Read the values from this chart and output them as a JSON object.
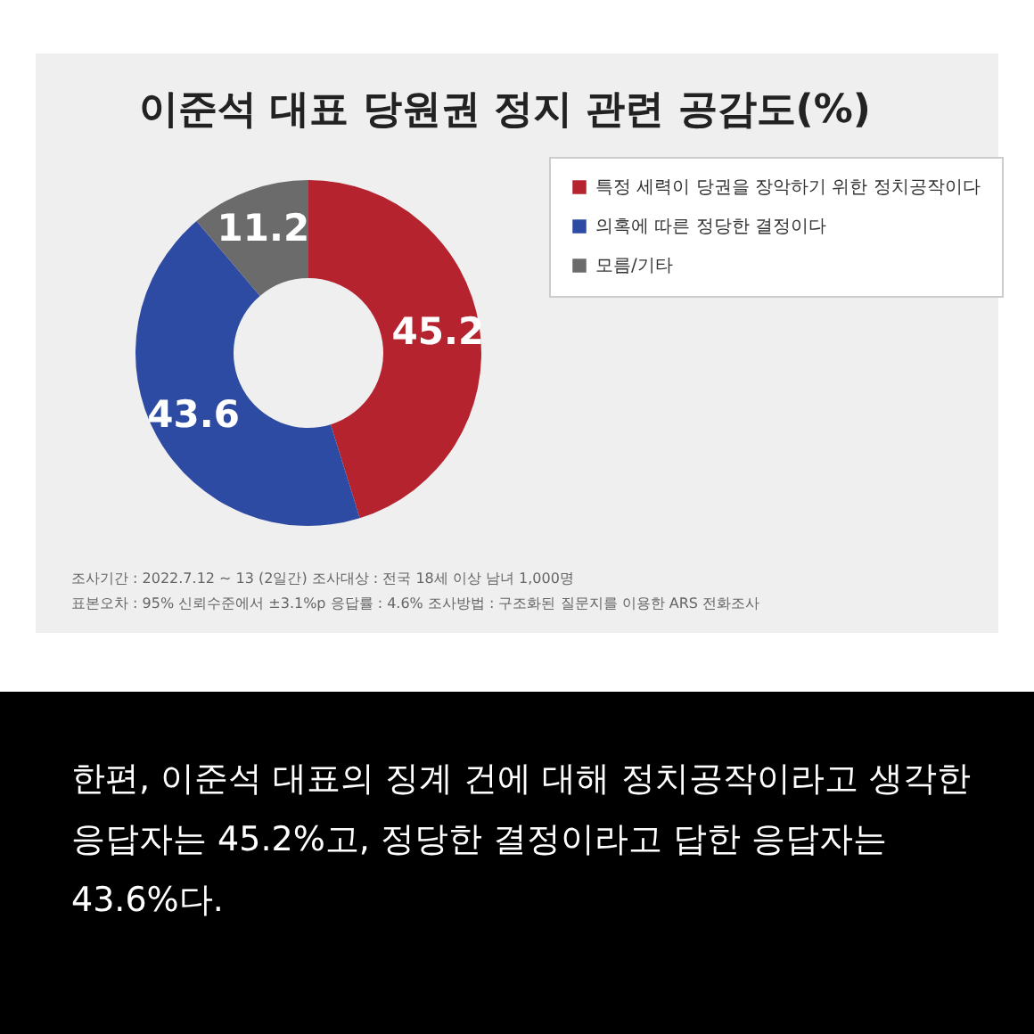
{
  "chart_data": {
    "type": "donut",
    "title": "이준석 대표 당원권 정지 관련 공감도(%)",
    "categories": [
      "특정 세력이 당권을 장악하기 위한 정치공작이다",
      "의혹에 따른 정당한 결정이다",
      "모름/기타"
    ],
    "values": [
      45.2,
      43.6,
      11.2
    ],
    "colors": [
      "#b5232e",
      "#2d4ba3",
      "#6b6b6b"
    ],
    "data_labels": true,
    "legend": "right",
    "annotations": [
      "조사기간 : 2022.7.12 ~ 13 (2일간)  조사대상 : 전국 18세 이상 남녀 1,000명",
      "표본오차 : 95% 신뢰수준에서 ±3.1%p  응답률 : 4.6%  조사방법 : 구조화된 질문지를 이용한 ARS 전화조사",
      "한편, 이준석 대표의 징계 건에 대해 정치공작이라고 생각한 응답자는 45.2%고, 정당한 결정이라고 답한 응답자는 43.6%다."
    ]
  }
}
